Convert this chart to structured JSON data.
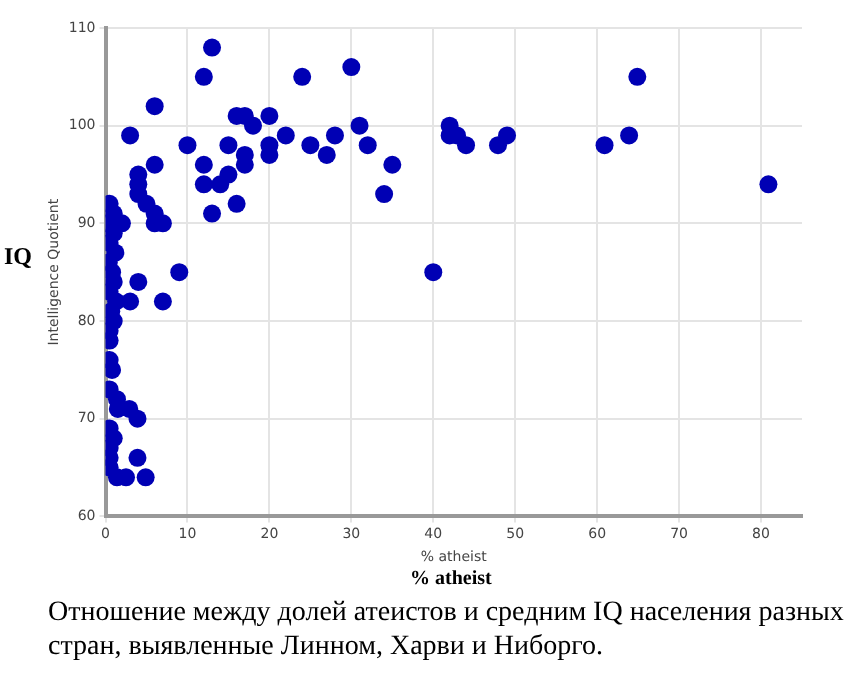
{
  "chart_data": {
    "type": "scatter",
    "xlabel": "% atheist",
    "ylabel": "Intelligence Quotient",
    "annotations": [
      "IQ",
      "% atheist",
      "Отношение между долей атеистов и средним IQ населения разных стран, выявленные Линном, Харви и Ниборго."
    ],
    "series": [
      {
        "color": "#0000b4",
        "x": [
          13,
          12,
          24,
          30,
          6,
          3,
          16,
          17,
          18,
          20,
          10,
          15,
          22,
          20,
          20,
          17,
          17,
          25,
          27,
          28,
          31,
          32,
          35,
          34,
          12,
          12,
          14,
          15,
          16,
          13,
          6,
          4,
          4,
          4,
          5,
          6,
          6,
          7,
          2,
          40,
          9,
          4,
          3,
          7,
          0.5,
          1,
          0.3,
          1,
          0.5,
          1.2,
          0.4,
          0.8,
          1,
          0.5,
          1.3,
          0.7,
          1,
          0.5,
          0.5,
          0.5,
          1.4,
          2.9,
          3.9,
          0.5,
          1.5,
          0.5,
          3.9,
          0.5,
          0.5,
          1.4,
          2.5,
          4.9,
          42,
          42,
          42.9,
          44,
          47.9,
          49,
          60.9,
          63.9,
          64.9,
          80.9,
          1,
          0.5,
          0.8
        ],
        "values": [
          108,
          105,
          105,
          106,
          102,
          99,
          101,
          101,
          100,
          101,
          98,
          98,
          99,
          98,
          97,
          97,
          96,
          98,
          97,
          99,
          100,
          98,
          96,
          93,
          96,
          94,
          94,
          95,
          92,
          91,
          96,
          95,
          94,
          93,
          92,
          91,
          90,
          90,
          90,
          85,
          85,
          84,
          82,
          82,
          92,
          91,
          90,
          89,
          88,
          87,
          86,
          85,
          84,
          83,
          82,
          81,
          80,
          79,
          78,
          76,
          72,
          71,
          70,
          73,
          71,
          69,
          66,
          66,
          67,
          64,
          64,
          64,
          100,
          99,
          99,
          98,
          98,
          99,
          98,
          99,
          105,
          94,
          68,
          65,
          75
        ]
      }
    ],
    "xlim": [
      0,
      85
    ],
    "xticks": [
      0,
      10,
      20,
      30,
      40,
      50,
      60,
      70,
      80
    ],
    "ylim": [
      60,
      110
    ],
    "yticks": [
      60,
      70,
      80,
      90,
      100,
      110
    ],
    "grid": true,
    "legend": false,
    "marker": "circle"
  }
}
